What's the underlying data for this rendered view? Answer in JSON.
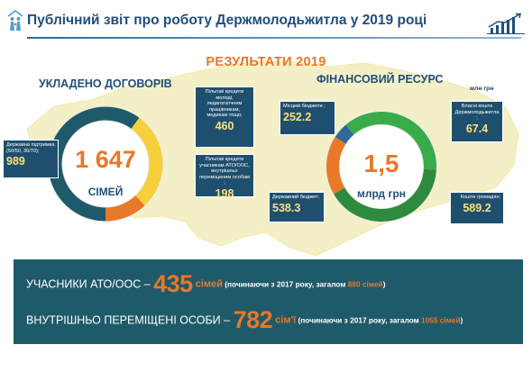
{
  "header": {
    "title": "Публічний звіт про роботу Держмолодьжитла  у 2019 році"
  },
  "results_title": "РЕЗУЛЬТАТИ 2019",
  "contracts": {
    "title": "УКЛАДЕНО ДОГОВОРІВ",
    "total": "1 647",
    "total_unit": "СІМЕЙ",
    "boxes": {
      "youth": {
        "label": "Пільгові кредити молоді, педагогогічним працівникам, медикам тощо;",
        "value": "460"
      },
      "state": {
        "label": "Державна підтримка (50/50, 30/70);",
        "value": "989"
      },
      "ato": {
        "label": "Пільгові кредити учасникам АТО/ООС, внутрішньо переміщеним особам ;",
        "value": "198"
      }
    }
  },
  "finance": {
    "title": "ФІНАНСОВИЙ РЕСУРС",
    "unit": "млн грн",
    "total": "1,5",
    "total_unit": "млрд грн",
    "boxes": {
      "local": {
        "label": "Місцеві бюджети ;",
        "value": "252.2"
      },
      "own": {
        "label": "Власні кошти Держмолодьжитла ;",
        "value": "67.4"
      },
      "state_budget": {
        "label": "Державний бюджет;",
        "value": "538.3"
      },
      "citizens": {
        "label": "Кошти громадян;",
        "value": "589.2"
      }
    }
  },
  "bottom": {
    "line1": {
      "label": "УЧАСНИКИ АТО/ООС – ",
      "number": "435",
      "unit": " сімей",
      "note_a": " (починаючи з 2017 року, загалом ",
      "note_hl": "880 сімей",
      "note_b": ")"
    },
    "line2": {
      "label": "ВНУТРІШНЬО ПЕРЕМІЩЕНІ ОСОБИ  – ",
      "number": "782",
      "unit": " сім'ї",
      "note_a": " (починаючи з 2017 року, загалом ",
      "note_hl": "1055 сімей",
      "note_b": ")"
    }
  },
  "colors": {
    "navy": "#1f4f7a",
    "orange": "#e8782a",
    "teal_dark": "#1f5a6a",
    "yellow": "#f7cf3b",
    "green": "#3aab4a",
    "green_dark": "#2e8a3c",
    "map": "#f3f0c8",
    "track": "#ececec"
  },
  "chart_data": [
    {
      "type": "pie",
      "title": "УКЛАДЕНО ДОГОВОРІВ",
      "categories": [
        "Державна підтримка (50/50, 30/70);",
        "Пільгові кредити молоді, педагогогічним працівникам, медикам тощо;",
        "Пільгові кредити учасникам АТО/ООС, внутрішньо переміщеним особам ;"
      ],
      "values": [
        989,
        460,
        198
      ],
      "colors": [
        "#1f5a6a",
        "#f7cf3b",
        "#e8782a"
      ],
      "legend": "none"
    },
    {
      "type": "pie",
      "title": "ФІНАНСОВИЙ РЕСУРС",
      "categories": [
        "Місцеві бюджети ;",
        "Власні кошти Держмолодьжитла ;",
        "Державний бюджет;",
        "Кошти громадян;"
      ],
      "values": [
        252.2,
        67.4,
        538.3,
        589.2
      ],
      "colors": [
        "#e8782a",
        "#2d6a9a",
        "#3aab4a",
        "#2e8a3c"
      ],
      "legend": "none"
    }
  ]
}
